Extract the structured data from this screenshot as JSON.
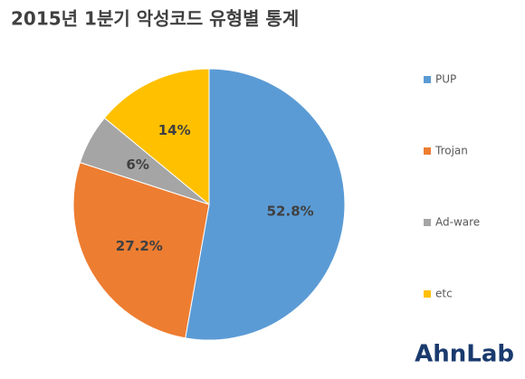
{
  "chart_data": {
    "type": "pie",
    "title": "2015년 1분기 악성코드 유형별 통계",
    "categories": [
      "PUP",
      "Trojan",
      "Ad-ware",
      "etc"
    ],
    "values": [
      52.8,
      27.2,
      6,
      14
    ],
    "value_labels": [
      "52.8%",
      "27.2%",
      "6%",
      "14%"
    ],
    "colors": [
      "#5b9bd5",
      "#ed7d31",
      "#a5a5a5",
      "#ffc000"
    ],
    "legend": "right"
  },
  "logo": "AhnLab"
}
